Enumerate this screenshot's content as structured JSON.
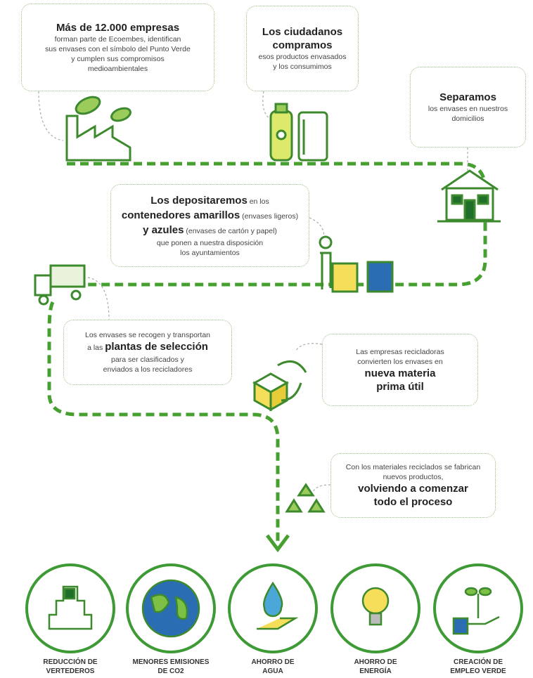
{
  "boxes": [
    {
      "lines": [
        [
          {
            "text": "Más de 12.000 empresas",
            "bold": true
          }
        ],
        "forman parte de Ecoembes, identifican",
        "sus envases con el símbolo del Punto Verde",
        "y cumplen sus compromisos",
        "medioambientales"
      ]
    },
    {
      "lines": [
        [
          {
            "text": "Los ciudadanos",
            "bold": true
          }
        ],
        [
          {
            "text": "compramos",
            "bold": true
          }
        ],
        "esos productos envasados",
        "y los consumimos"
      ]
    },
    {
      "lines": [
        [
          {
            "text": "Separamos",
            "bold": true
          }
        ],
        "los envases en nuestros",
        "domicilios"
      ]
    },
    {
      "lines": [
        [
          {
            "text": "Los depositaremos",
            "bold": true
          },
          {
            "text": " en los",
            "bold": false
          }
        ],
        [
          {
            "text": "contenedores amarillos",
            "bold": true
          },
          {
            "text": " (envases ligeros)",
            "bold": false
          }
        ],
        [
          {
            "text": "y azules",
            "bold": true
          },
          {
            "text": " (envases de cartón y papel)",
            "bold": false
          }
        ],
        "que ponen a nuestra disposición",
        "los ayuntamientos"
      ]
    },
    {
      "lines": [
        "Los envases se recogen y transportan",
        [
          {
            "text": "a las ",
            "bold": false
          },
          {
            "text": "plantas de selección",
            "bold": true
          }
        ],
        "para ser clasificados y",
        "enviados a los recicladores"
      ]
    },
    {
      "lines": [
        "Las empresas recicladoras",
        "convierten los envases en",
        [
          {
            "text": "nueva materia",
            "bold": true
          }
        ],
        [
          {
            "text": "prima útil",
            "bold": true
          }
        ]
      ]
    },
    {
      "lines": [
        "Con los materiales reciclados se fabrican",
        "nuevos productos,",
        [
          {
            "text": "volviendo a comenzar",
            "bold": true
          }
        ],
        [
          {
            "text": "todo el proceso",
            "bold": true
          }
        ]
      ]
    }
  ],
  "benefits": [
    [
      "REDUCCIÓN DE",
      "VERTEDEROS"
    ],
    [
      "MENORES EMISIONES",
      "DE CO2"
    ],
    [
      "AHORRO DE",
      "AGUA"
    ],
    [
      "AHORRO DE",
      "ENERGÍA"
    ],
    [
      "CREACIÓN DE",
      "EMPLEO VERDE"
    ]
  ]
}
